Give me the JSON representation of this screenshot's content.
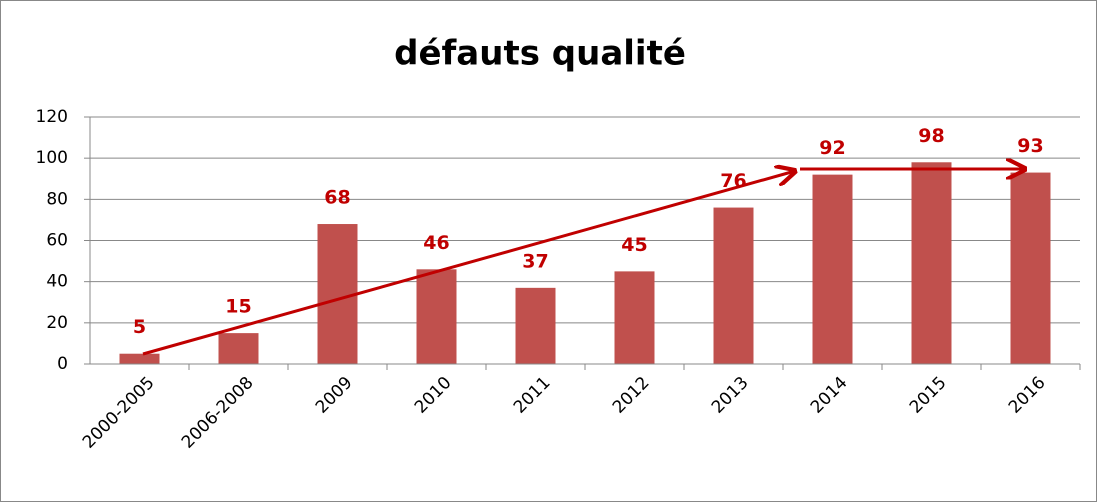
{
  "chart_data": {
    "type": "bar",
    "title": "défauts qualité",
    "categories": [
      "2000-2005",
      "2006-2008",
      "2009",
      "2010",
      "2011",
      "2012",
      "2013",
      "2014",
      "2015",
      "2016"
    ],
    "values": [
      5,
      15,
      68,
      46,
      37,
      45,
      76,
      92,
      98,
      93
    ],
    "color": "#c0504d",
    "label_color": "#c00000",
    "ylim": [
      0,
      120
    ],
    "yticks": [
      0,
      20,
      40,
      60,
      80,
      100,
      120
    ],
    "grid": true
  }
}
